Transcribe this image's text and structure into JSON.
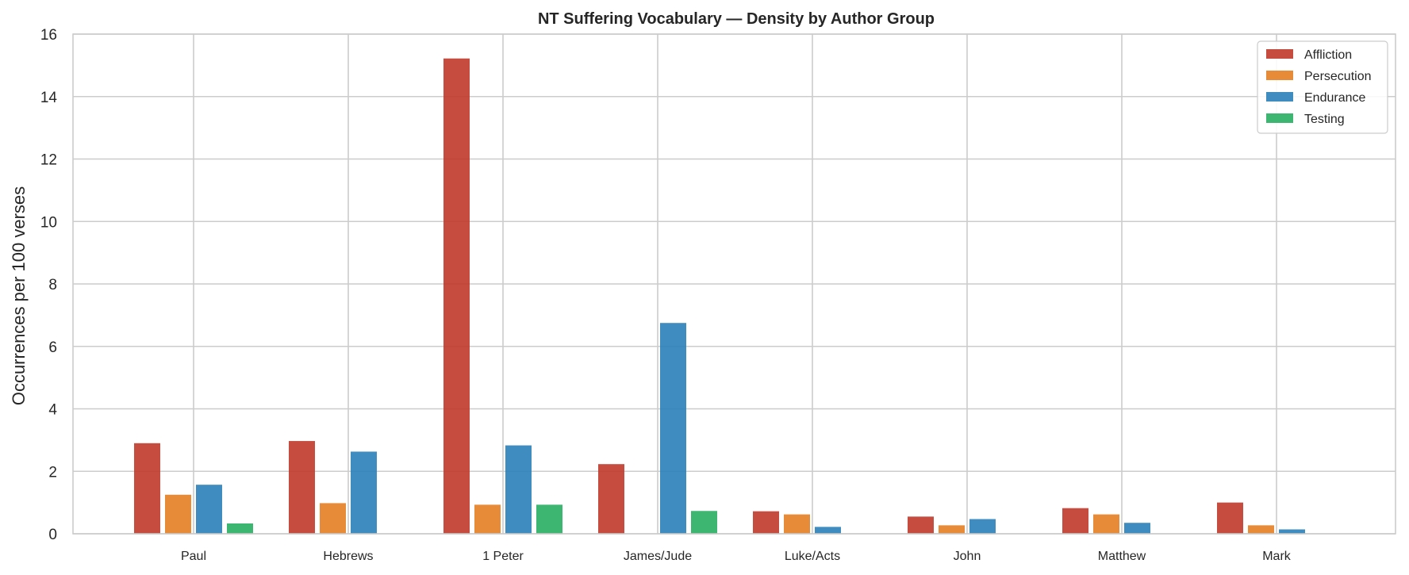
{
  "chart_data": {
    "type": "bar",
    "title": "NT Suffering Vocabulary — Density by Author Group",
    "xlabel": "",
    "ylabel": "Occurrences per 100 verses",
    "ylim": [
      0,
      16
    ],
    "yticks": [
      0,
      2,
      4,
      6,
      8,
      10,
      12,
      14,
      16
    ],
    "grid": true,
    "legend_position": "top-right",
    "categories": [
      "Paul",
      "Hebrews",
      "1 Peter",
      "James/Jude",
      "Luke/Acts",
      "John",
      "Matthew",
      "Mark"
    ],
    "series": [
      {
        "name": "Affliction",
        "color": "#c0392b",
        "values": [
          2.9,
          2.97,
          15.22,
          2.23,
          0.72,
          0.55,
          0.82,
          1.0
        ]
      },
      {
        "name": "Persecution",
        "color": "#e67e22",
        "values": [
          1.25,
          0.98,
          0.93,
          0.0,
          0.62,
          0.27,
          0.62,
          0.27
        ]
      },
      {
        "name": "Endurance",
        "color": "#2980b9",
        "values": [
          1.57,
          2.63,
          2.83,
          6.75,
          0.22,
          0.47,
          0.35,
          0.14
        ]
      },
      {
        "name": "Testing",
        "color": "#27ae60",
        "values": [
          0.33,
          0.0,
          0.93,
          0.73,
          0.0,
          0.0,
          0.0,
          0.0
        ]
      }
    ]
  }
}
